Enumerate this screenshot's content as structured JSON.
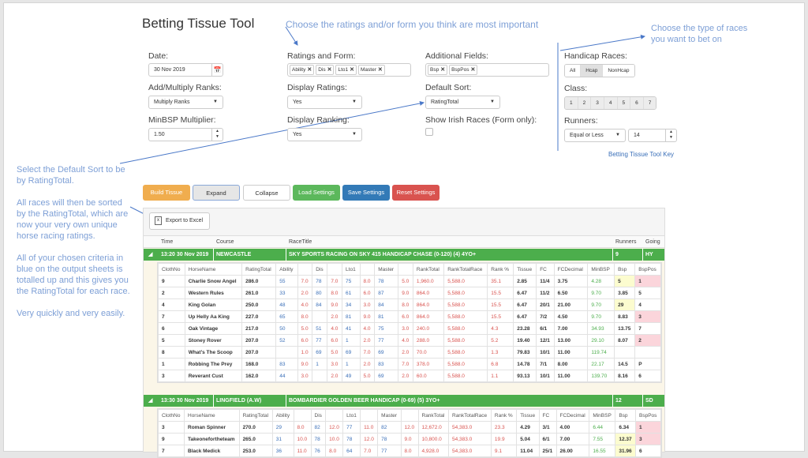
{
  "header": {
    "title": "Betting Tissue Tool"
  },
  "annotations": {
    "ratings_note": "Choose the ratings and/or form you think are most important",
    "races_note_1": "Choose the type of races",
    "races_note_2": "you want to bet on",
    "sort_note_1": "Select the Default Sort to be",
    "sort_note_2": "by RatingTotal.",
    "sorted_note_1": "All races will then be sorted",
    "sorted_note_2": "by the RatingTotal, which are",
    "sorted_note_3": "now your very own unique",
    "sorted_note_4": "horse racing ratings.",
    "criteria_note_1": "All of your chosen criteria in",
    "criteria_note_2": "blue on the output sheets is",
    "criteria_note_3": "totalled up and this gives you",
    "criteria_note_4": "the RatingTotal for each race.",
    "easy_note": "Very quickly and very easily."
  },
  "form": {
    "date_label": "Date:",
    "date_value": "30 Nov 2019",
    "addmult_label": "Add/Multiply Ranks:",
    "addmult_value": "Multiply Ranks",
    "minbsp_label": "MinBSP Multiplier:",
    "minbsp_value": "1.50",
    "ratings_label": "Ratings and Form:",
    "ratings_tags": [
      "Ability",
      "Dis",
      "Lto1",
      "Master"
    ],
    "display_ratings_label": "Display Ratings:",
    "display_ratings_value": "Yes",
    "display_ranking_label": "Display Ranking:",
    "display_ranking_value": "Yes",
    "additional_label": "Additional Fields:",
    "additional_tags": [
      "Bsp",
      "BspPos"
    ],
    "default_sort_label": "Default Sort:",
    "default_sort_value": "RatingTotal",
    "irish_label": "Show Irish Races (Form only):",
    "handicap_label": "Handicap Races:",
    "handicap_options": [
      "All",
      "Hcap",
      "NonHcap"
    ],
    "handicap_selected": "Hcap",
    "class_label": "Class:",
    "class_options": [
      "1",
      "2",
      "3",
      "4",
      "5",
      "6",
      "7"
    ],
    "runners_label": "Runners:",
    "runners_op": "Equal or Less",
    "runners_value": "14",
    "key_link": "Betting Tissue Tool Key"
  },
  "buttons": {
    "build": "Build Tissue",
    "expand": "Expand",
    "collapse": "Collapse",
    "load": "Load Settings",
    "save": "Save Settings",
    "reset": "Reset Settings",
    "export": "Export to Excel"
  },
  "colors": {
    "build": "#f0ad4e",
    "load": "#5cb85c",
    "save": "#337ab7",
    "reset": "#d9534f",
    "group": "#4cae4c"
  },
  "grid": {
    "columns": [
      "Time",
      "Course",
      "RaceTitle",
      "Runners",
      "Going"
    ],
    "sub_columns": [
      "ClothNo",
      "HorseName",
      "RatingTotal",
      "Ability",
      "",
      "Dis",
      "",
      "Lto1",
      "",
      "Master",
      "",
      "RankTotal",
      "RankTotalRace",
      "Rank %",
      "Tissue",
      "FC",
      "FCDecimal",
      "MinBSP",
      "Bsp",
      "BspPos"
    ],
    "races": [
      {
        "time": "13:20 30 Nov 2019",
        "course": "NEWCASTLE",
        "title": "SKY SPORTS RACING ON SKY 415 HANDICAP CHASE (0-120) (4) 4YO+",
        "runners": "9",
        "going": "HY",
        "rows": [
          [
            "9",
            "Charlie Snow Angel",
            "286.0",
            "55",
            "7.0",
            "78",
            "7.0",
            "75",
            "8.0",
            "78",
            "5.0",
            "1,960.0",
            "5,588.0",
            "35.1",
            "2.85",
            "11/4",
            "3.75",
            "4.28",
            "5",
            "1"
          ],
          [
            "2",
            "Western Rules",
            "261.0",
            "33",
            "2.0",
            "80",
            "8.0",
            "61",
            "6.0",
            "87",
            "9.0",
            "864.0",
            "5,588.0",
            "15.5",
            "6.47",
            "11/2",
            "6.50",
            "9.70",
            "3.85",
            "5"
          ],
          [
            "4",
            "King Golan",
            "250.0",
            "48",
            "4.0",
            "84",
            "9.0",
            "34",
            "3.0",
            "84",
            "8.0",
            "864.0",
            "5,588.0",
            "15.5",
            "6.47",
            "20/1",
            "21.00",
            "9.70",
            "29",
            "4"
          ],
          [
            "7",
            "Up Helly Aa King",
            "227.0",
            "65",
            "8.0",
            "",
            "2.0",
            "81",
            "9.0",
            "81",
            "6.0",
            "864.0",
            "5,588.0",
            "15.5",
            "6.47",
            "7/2",
            "4.50",
            "9.70",
            "8.83",
            "3"
          ],
          [
            "6",
            "Oak Vintage",
            "217.0",
            "50",
            "5.0",
            "51",
            "4.0",
            "41",
            "4.0",
            "75",
            "3.0",
            "240.0",
            "5,588.0",
            "4.3",
            "23.28",
            "6/1",
            "7.00",
            "34.93",
            "13.75",
            "7"
          ],
          [
            "5",
            "Stoney Rover",
            "207.0",
            "52",
            "6.0",
            "77",
            "6.0",
            "1",
            "2.0",
            "77",
            "4.0",
            "288.0",
            "5,588.0",
            "5.2",
            "19.40",
            "12/1",
            "13.00",
            "29.10",
            "8.07",
            "2"
          ],
          [
            "8",
            "What's The Scoop",
            "207.0",
            "",
            "1.0",
            "69",
            "5.0",
            "69",
            "7.0",
            "69",
            "2.0",
            "70.0",
            "5,588.0",
            "1.3",
            "79.83",
            "10/1",
            "11.00",
            "119.74",
            "",
            ""
          ],
          [
            "1",
            "Robbing The Prey",
            "168.0",
            "83",
            "9.0",
            "1",
            "3.0",
            "1",
            "2.0",
            "83",
            "7.0",
            "378.0",
            "5,588.0",
            "6.8",
            "14.78",
            "7/1",
            "8.00",
            "22.17",
            "14.5",
            "P"
          ],
          [
            "3",
            "Reverant Cust",
            "162.0",
            "44",
            "3.0",
            "",
            "2.0",
            "49",
            "5.0",
            "69",
            "2.0",
            "60.0",
            "5,588.0",
            "1.1",
            "93.13",
            "10/1",
            "11.00",
            "139.70",
            "8.16",
            "6"
          ]
        ],
        "hl": {
          "0": [
            "y",
            "p"
          ],
          "2": [
            "y",
            ""
          ],
          "3": [
            "",
            "p"
          ],
          "5": [
            "",
            "p"
          ]
        }
      },
      {
        "time": "13:30 30 Nov 2019",
        "course": "LINGFIELD (A.W)",
        "title": "BOMBARDIER GOLDEN BEER HANDICAP (0-69) (5) 3YO+",
        "runners": "12",
        "going": "SD",
        "rows": [
          [
            "3",
            "Roman Spinner",
            "270.0",
            "29",
            "8.0",
            "82",
            "12.0",
            "77",
            "11.0",
            "82",
            "12.0",
            "12,672.0",
            "54,383.0",
            "23.3",
            "4.29",
            "3/1",
            "4.00",
            "6.44",
            "6.34",
            "1"
          ],
          [
            "9",
            "Takeonefortheteam",
            "265.0",
            "31",
            "10.0",
            "78",
            "10.0",
            "78",
            "12.0",
            "78",
            "9.0",
            "10,800.0",
            "54,383.0",
            "19.9",
            "5.04",
            "6/1",
            "7.00",
            "7.55",
            "12.37",
            "3"
          ],
          [
            "7",
            "Black Medick",
            "253.0",
            "36",
            "11.0",
            "76",
            "8.0",
            "64",
            "7.0",
            "77",
            "8.0",
            "4,928.0",
            "54,383.0",
            "9.1",
            "11.04",
            "25/1",
            "26.00",
            "16.55",
            "31.96",
            "6"
          ]
        ]
      }
    ]
  }
}
